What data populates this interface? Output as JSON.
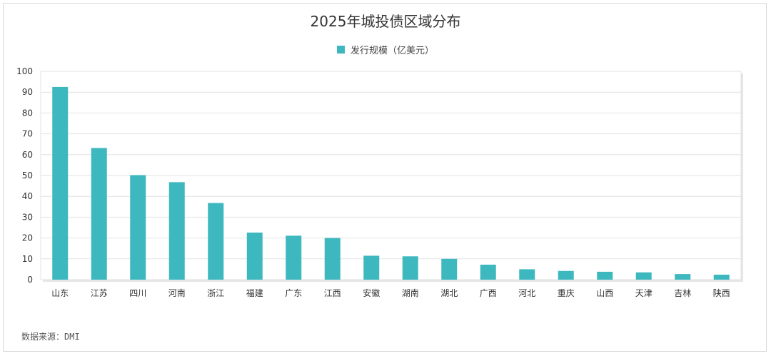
{
  "chart_data": {
    "type": "bar",
    "title": "2025年城投债区域分布",
    "categories": [
      "山东",
      "江苏",
      "四川",
      "河南",
      "浙江",
      "福建",
      "广东",
      "江西",
      "安徽",
      "湖南",
      "湖北",
      "广西",
      "河北",
      "重庆",
      "山西",
      "天津",
      "吉林",
      "陕西"
    ],
    "series": [
      {
        "name": "发行规模（亿美元）",
        "values": [
          92.5,
          63.2,
          50.2,
          46.8,
          36.8,
          22.6,
          21.1,
          20.0,
          11.5,
          11.2,
          10.0,
          7.2,
          5.0,
          4.2,
          3.8,
          3.5,
          2.7,
          2.4
        ]
      }
    ],
    "ylim": [
      0,
      100
    ],
    "yticks": [
      0,
      10,
      20,
      30,
      40,
      50,
      60,
      70,
      80,
      90,
      100
    ],
    "grid": true,
    "legend_position": "top-center",
    "bar_color": "#3db8bf"
  },
  "source_label": "数据来源：DMI"
}
